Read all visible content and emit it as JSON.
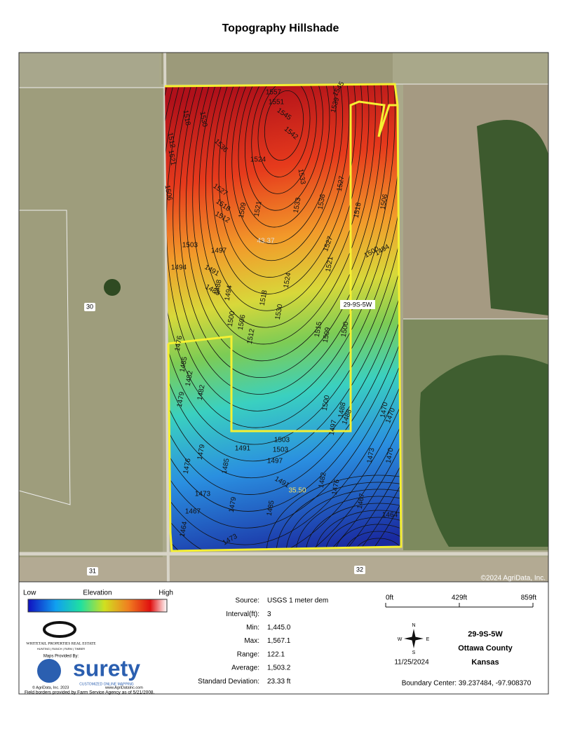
{
  "title": "Topography Hillshade",
  "map": {
    "field_labels": [
      "43.37",
      "35.50"
    ],
    "section_label": "29-9S-5W",
    "road_labels": [
      "30",
      "31",
      "32"
    ],
    "copyright": "©2024 AgriData, Inc.",
    "contour_labels": [
      "1557",
      "1551",
      "1545",
      "1542",
      "1539",
      "1545",
      "1536",
      "1530",
      "1518",
      "1512",
      "1506",
      "1521",
      "1524",
      "1533",
      "1527",
      "1518",
      "1512",
      "1503",
      "1509",
      "1521",
      "1533",
      "1536",
      "1527",
      "1518",
      "1506",
      "1500",
      "1494",
      "1497",
      "1491",
      "1485",
      "1488",
      "1494",
      "1500",
      "1506",
      "1512",
      "1518",
      "1524",
      "1530",
      "1527",
      "1521",
      "1515",
      "1509",
      "1500",
      "1494",
      "1488",
      "1482",
      "1479",
      "1476",
      "1470",
      "1482",
      "1485",
      "1491",
      "1497",
      "1503",
      "1491",
      "1485",
      "1479",
      "1473",
      "1476",
      "1470",
      "1467",
      "1464",
      "1473",
      "1479",
      "1485",
      "1476",
      "1467",
      "1464",
      "1470",
      "1473",
      "1482",
      "1488",
      "1497",
      "1503",
      "1500"
    ]
  },
  "legend": {
    "low": "Low",
    "title": "Elevation",
    "high": "High"
  },
  "logos": {
    "brand": "WHITETAIL PROPERTIES REAL ESTATE",
    "tagline": "HUNTING | RANCH | FARM | TIMBER",
    "maps_by": "Maps Provided By:",
    "surety": "surety",
    "surety_tag": "CUSTOMIZED ONLINE MAPPING",
    "agridata": "© AgriData, Inc. 2023",
    "url": "www.AgriDataInc.com"
  },
  "stats": [
    [
      "Source:",
      "USGS 1 meter dem"
    ],
    [
      "Interval(ft):",
      "3"
    ],
    [
      "Min:",
      "1,445.0"
    ],
    [
      "Max:",
      "1,567.1"
    ],
    [
      "Range:",
      "122.1"
    ],
    [
      "Average:",
      "1,503.2"
    ],
    [
      "Standard Deviation:",
      "23.33 ft"
    ]
  ],
  "scale": [
    "0ft",
    "429ft",
    "859ft"
  ],
  "compass": [
    "N",
    "S",
    "E",
    "W"
  ],
  "date": "11/25/2024",
  "location": [
    "29-9S-5W",
    "Ottawa County",
    "Kansas"
  ],
  "boundary_center": "Boundary Center: 39.237484, -97.908370",
  "footer": "Field borders provided by Farm Service Agency as of 5/21/2008."
}
